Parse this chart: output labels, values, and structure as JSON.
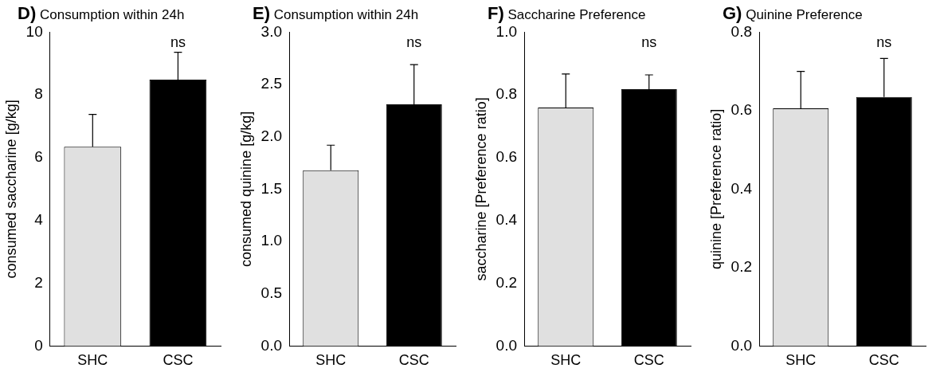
{
  "chart_data": [
    {
      "type": "bar",
      "title": "D) Consumption within 24h",
      "ylabel": "consumed saccharine [g/kg]",
      "categories": [
        "SHC",
        "CSC"
      ],
      "values": [
        6.35,
        8.49
      ],
      "colors": [
        "#e0e0e0",
        "#000000"
      ],
      "errors": [
        [
          6.35,
          7.38
        ],
        [
          8.49,
          9.36
        ]
      ],
      "ylim": [
        0,
        10
      ],
      "yticks": [
        0,
        2,
        4,
        6,
        8,
        10
      ],
      "grid": false,
      "annotations": [
        "ns"
      ]
    },
    {
      "type": "bar",
      "title": "E) Consumption within 24h",
      "ylabel": "consumed quinine [g/kg]",
      "categories": [
        "SHC",
        "CSC"
      ],
      "values": [
        1.68,
        2.31
      ],
      "colors": [
        "#e0e0e0",
        "#000000"
      ],
      "errors": [
        [
          1.68,
          1.92
        ],
        [
          2.31,
          2.69
        ]
      ],
      "ylim": [
        0,
        3
      ],
      "yticks": [
        {
          "value": 0,
          "label": "0.0"
        },
        {
          "value": 0.5,
          "label": "0.5"
        },
        {
          "value": 1,
          "label": "1.0"
        },
        {
          "value": 1.5,
          "label": "1.5"
        },
        {
          "value": 2,
          "label": "2.0"
        },
        {
          "value": 2.5,
          "label": "2.5"
        },
        {
          "value": 3,
          "label": "3.0"
        }
      ],
      "grid": false,
      "annotations": [
        "ns"
      ]
    },
    {
      "type": "bar",
      "title": "F) Saccharine Preference",
      "ylabel": "saccharine [Preference ratio]",
      "categories": [
        "SHC",
        "CSC"
      ],
      "values": [
        0.76,
        0.818
      ],
      "colors": [
        "#e0e0e0",
        "#000000"
      ],
      "errors": [
        [
          0.76,
          0.867
        ],
        [
          0.818,
          0.864
        ]
      ],
      "ylim": [
        0,
        1
      ],
      "yticks": [
        {
          "value": 0,
          "label": "0.0"
        },
        0.2,
        0.4,
        0.6,
        0.8,
        {
          "value": 1,
          "label": "1.0"
        }
      ],
      "grid": false,
      "annotations": [
        "ns"
      ]
    },
    {
      "type": "bar",
      "title": "G) Quinine Preference",
      "ylabel": "quinine [Preference ratio]",
      "categories": [
        "SHC",
        "CSC"
      ],
      "values": [
        0.606,
        0.635
      ],
      "colors": [
        "#e0e0e0",
        "#000000"
      ],
      "errors": [
        [
          0.606,
          0.7
        ],
        [
          0.635,
          0.733
        ]
      ],
      "ylim": [
        0,
        0.8
      ],
      "yticks": [
        {
          "value": 0,
          "label": "0.0"
        },
        0.2,
        0.4,
        0.6,
        0.8
      ],
      "grid": false,
      "annotations": [
        "ns"
      ]
    }
  ]
}
